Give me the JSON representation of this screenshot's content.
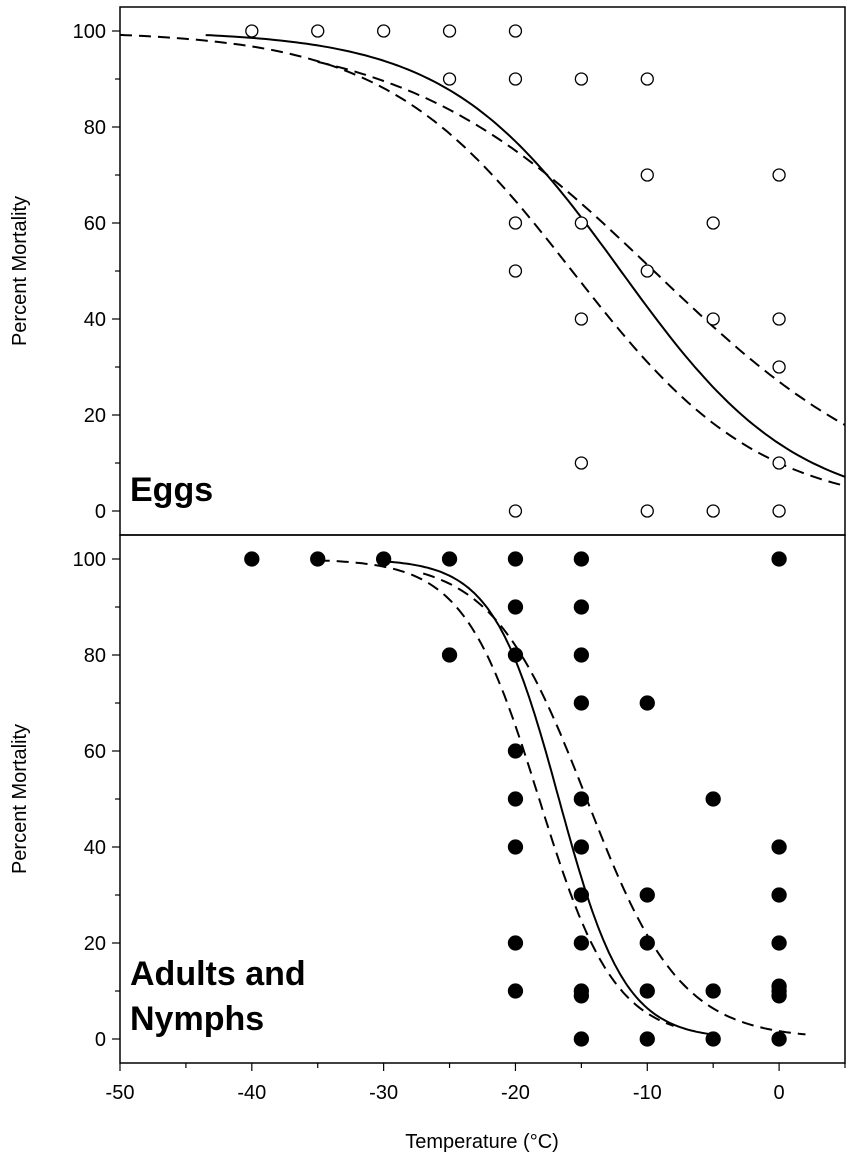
{
  "chart_data": [
    {
      "type": "scatter",
      "panel_label": "Eggs",
      "ylabel": "Percent Mortality",
      "xlim": [
        -50,
        5
      ],
      "ylim": [
        -5,
        105
      ],
      "yticks": [
        0,
        20,
        40,
        60,
        80,
        100
      ],
      "marker": "open-circle",
      "points": [
        [
          -40,
          100
        ],
        [
          -35,
          100
        ],
        [
          -30,
          100
        ],
        [
          -25,
          100
        ],
        [
          -20,
          100
        ],
        [
          -25,
          90
        ],
        [
          -20,
          90
        ],
        [
          -15,
          90
        ],
        [
          -10,
          90
        ],
        [
          -10,
          70
        ],
        [
          0,
          70
        ],
        [
          -20,
          60
        ],
        [
          -15,
          60
        ],
        [
          -5,
          60
        ],
        [
          -20,
          50
        ],
        [
          -10,
          50
        ],
        [
          -15,
          40
        ],
        [
          -5,
          40
        ],
        [
          0,
          40
        ],
        [
          0,
          30
        ],
        [
          -15,
          10
        ],
        [
          0,
          10
        ],
        [
          -20,
          0
        ],
        [
          -10,
          0
        ],
        [
          -5,
          0
        ],
        [
          0,
          0
        ]
      ],
      "curves": [
        {
          "style": "solid",
          "x0": -12.0,
          "slope": 0.151,
          "range": [
            -43.5,
            5
          ]
        },
        {
          "style": "dashed",
          "x0": -9.5,
          "slope": 0.105,
          "range": [
            -35,
            5
          ]
        },
        {
          "style": "dashed",
          "x0": -15.7,
          "slope": 0.14,
          "range": [
            -50,
            5
          ]
        }
      ]
    },
    {
      "type": "scatter",
      "panel_label_lines": [
        "Adults and",
        "Nymphs"
      ],
      "ylabel": "Percent Mortality",
      "xlabel": "Temperature (°C)",
      "xlim": [
        -50,
        5
      ],
      "ylim": [
        -5,
        105
      ],
      "xticks": [
        -50,
        -40,
        -30,
        -20,
        -10,
        0
      ],
      "yticks": [
        0,
        20,
        40,
        60,
        80,
        100
      ],
      "marker": "filled-circle",
      "points": [
        [
          -40,
          100
        ],
        [
          -35,
          100
        ],
        [
          -30,
          100
        ],
        [
          -25,
          100
        ],
        [
          -20,
          100
        ],
        [
          -15,
          100
        ],
        [
          0,
          100
        ],
        [
          -20,
          90
        ],
        [
          -15,
          90
        ],
        [
          -25,
          80
        ],
        [
          -20,
          80
        ],
        [
          -15,
          80
        ],
        [
          -15,
          70
        ],
        [
          -10,
          70
        ],
        [
          -20,
          60
        ],
        [
          -20,
          50
        ],
        [
          -15,
          50
        ],
        [
          -5,
          50
        ],
        [
          -20,
          40
        ],
        [
          -15,
          40
        ],
        [
          0,
          40
        ],
        [
          -15,
          30
        ],
        [
          -10,
          30
        ],
        [
          0,
          30
        ],
        [
          -20,
          20
        ],
        [
          -15,
          20
        ],
        [
          -10,
          20
        ],
        [
          0,
          20
        ],
        [
          -20,
          10
        ],
        [
          -15,
          10
        ],
        [
          -10,
          10
        ],
        [
          -5,
          10
        ],
        [
          0,
          10
        ],
        [
          -15,
          9
        ],
        [
          0,
          9
        ],
        [
          0,
          11
        ],
        [
          -15,
          0
        ],
        [
          -10,
          0
        ],
        [
          -5,
          0
        ],
        [
          0,
          0
        ]
      ],
      "curves": [
        {
          "style": "solid",
          "x0": -16.7,
          "slope": 0.4,
          "range": [
            -30,
            -5
          ]
        },
        {
          "style": "dashed",
          "x0": -14.6,
          "slope": 0.28,
          "range": [
            -27,
            2
          ]
        },
        {
          "style": "dashed",
          "x0": -18.2,
          "slope": 0.35,
          "range": [
            -35,
            -8
          ]
        }
      ]
    }
  ]
}
